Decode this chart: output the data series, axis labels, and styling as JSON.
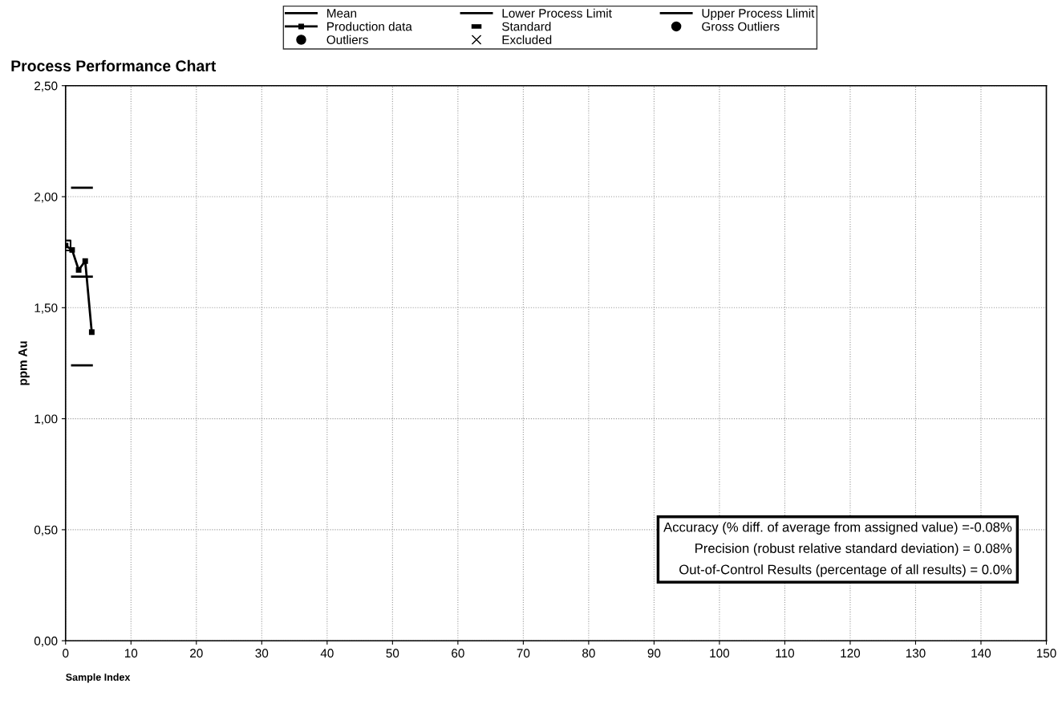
{
  "chart_data": {
    "type": "line",
    "title": "Process Performance Chart",
    "xlabel": "Sample Index",
    "ylabel": "ppm Au",
    "xlim": [
      0,
      150
    ],
    "xticks": [
      0,
      10,
      20,
      30,
      40,
      50,
      60,
      70,
      80,
      90,
      100,
      110,
      120,
      130,
      140,
      150
    ],
    "ylim": [
      0,
      2.5
    ],
    "yticks": [
      {
        "value": 0,
        "label": "0,00"
      },
      {
        "value": 0.5,
        "label": "0,50"
      },
      {
        "value": 1,
        "label": "1,00"
      },
      {
        "value": 1.5,
        "label": "1,50"
      },
      {
        "value": 2,
        "label": "2,00"
      },
      {
        "value": 2.5,
        "label": "2,50"
      }
    ],
    "grid": true,
    "legend": "top",
    "series": [
      {
        "name": "Mean",
        "color": "#000000",
        "marker": "none",
        "x": [
          1,
          4
        ],
        "values": [
          1.64,
          1.64
        ]
      },
      {
        "name": "Lower Process Limit",
        "color": "#000000",
        "marker": "none",
        "x": [
          1,
          4
        ],
        "values": [
          1.24,
          1.24
        ]
      },
      {
        "name": "Upper Process Llimit",
        "color": "#000000",
        "marker": "none",
        "x": [
          1,
          4
        ],
        "values": [
          2.04,
          2.04
        ]
      },
      {
        "name": "Production data",
        "color": "#000000",
        "marker": "square",
        "x": [
          0,
          1,
          2,
          3,
          4
        ],
        "values": [
          1.78,
          1.76,
          1.67,
          1.71,
          1.39
        ]
      },
      {
        "name": "Standard",
        "type": "scatter",
        "color": "#000000",
        "marker": "square",
        "x": [
          0
        ],
        "values": [
          1.78
        ]
      },
      {
        "name": "Gross Outliers",
        "type": "scatter",
        "color": "#000000",
        "marker": "circle"
      },
      {
        "name": "Outliers",
        "type": "scatter",
        "color": "#000000",
        "marker": "circle"
      },
      {
        "name": "Excluded",
        "type": "scatter",
        "color": "#000000",
        "marker": "cross"
      }
    ],
    "annotations": [
      "Accuracy (% diff. of average from assigned value) =-0.08%",
      "Precision (robust relative standard deviation) = 0.08%",
      "Out-of-Control Results (percentage of all results) = 0.0%"
    ]
  }
}
